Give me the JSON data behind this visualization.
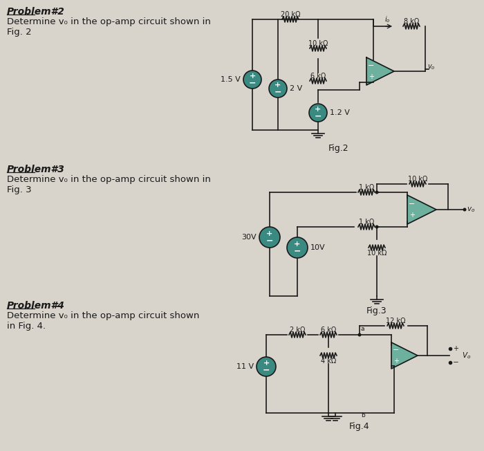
{
  "bg_color": "#d8d3cb",
  "circuit_color": "#1a1a1a",
  "teal_color": "#3a8a82",
  "p2_title": "Problem#2",
  "p2_line1": "Determine v₀ in the op-amp circuit shown in",
  "p2_line2": "Fig. 2",
  "p3_title": "Problem#3",
  "p3_line1": "Determine v₀ in the op-amp circuit shown in",
  "p3_line2": "Fig. 3",
  "p4_title": "Problem#4",
  "p4_line1": "Determine v₀ in the op-amp circuit shown",
  "p4_line2": "in Fig. 4."
}
